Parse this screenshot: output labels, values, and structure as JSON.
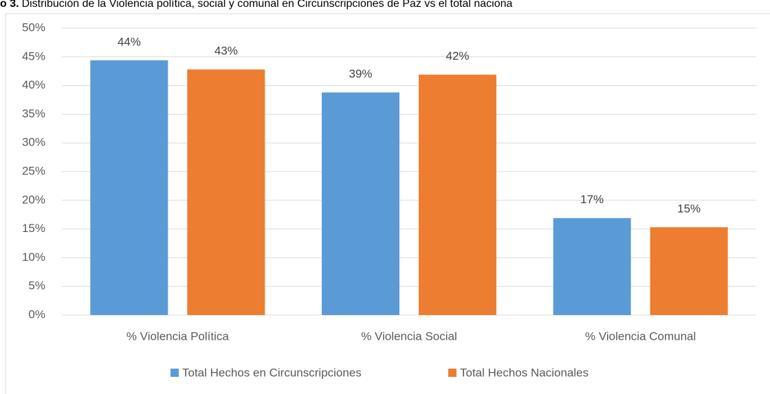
{
  "chart_data": {
    "type": "bar",
    "title_prefix": "o 3.",
    "title": "Distribución de la Violencia política, social y comunal en Circunscripciones de Paz vs el total naciona",
    "categories": [
      "% Violencia Política",
      "% Violencia Social",
      "% Violencia Comunal"
    ],
    "series": [
      {
        "name": "Total Hechos en Circunscripciones",
        "color": "#5b9bd5",
        "values": [
          44.4,
          38.8,
          16.9
        ],
        "value_labels": [
          "44%",
          "39%",
          "17%"
        ]
      },
      {
        "name": "Total Hechos Nacionales",
        "color": "#ed7d31",
        "values": [
          42.8,
          41.9,
          15.3
        ],
        "value_labels": [
          "43%",
          "42%",
          "15%"
        ]
      }
    ],
    "ylim": [
      0,
      50
    ],
    "yticks": [
      {
        "value": 0,
        "label": "0%"
      },
      {
        "value": 5,
        "label": "5%"
      },
      {
        "value": 10,
        "label": "10%"
      },
      {
        "value": 15,
        "label": "15%"
      },
      {
        "value": 20,
        "label": "20%"
      },
      {
        "value": 25,
        "label": "25%"
      },
      {
        "value": 30,
        "label": "30%"
      },
      {
        "value": 35,
        "label": "35%"
      },
      {
        "value": 40,
        "label": "40%"
      },
      {
        "value": 45,
        "label": "45%"
      },
      {
        "value": 50,
        "label": "50%"
      }
    ],
    "grid": true,
    "legend": "bottom"
  }
}
